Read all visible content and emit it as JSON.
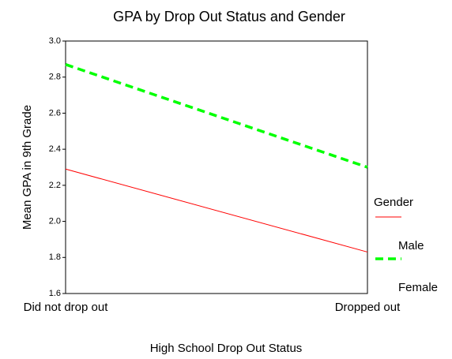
{
  "chart_data": {
    "type": "line",
    "title": "GPA by Drop Out Status and Gender",
    "x_label": "High School Drop Out Status",
    "y_label": "Mean GPA in 9th Grade",
    "legend_title": "Gender",
    "categories": [
      "Did not drop out",
      "Dropped out"
    ],
    "series": [
      {
        "name": "Male",
        "color": "#ff0000",
        "values": [
          2.29,
          1.83
        ]
      },
      {
        "name": "Female",
        "color": "#00ff00",
        "values": [
          2.87,
          2.3
        ]
      }
    ],
    "ylim": [
      1.6,
      3.0
    ],
    "yticks": [
      1.6,
      1.8,
      {
        "value": 2.0,
        "label": "2.0"
      },
      2.2,
      2.4,
      2.6,
      2.8,
      {
        "value": 3.0,
        "label": "3.0"
      }
    ],
    "grid": false
  }
}
